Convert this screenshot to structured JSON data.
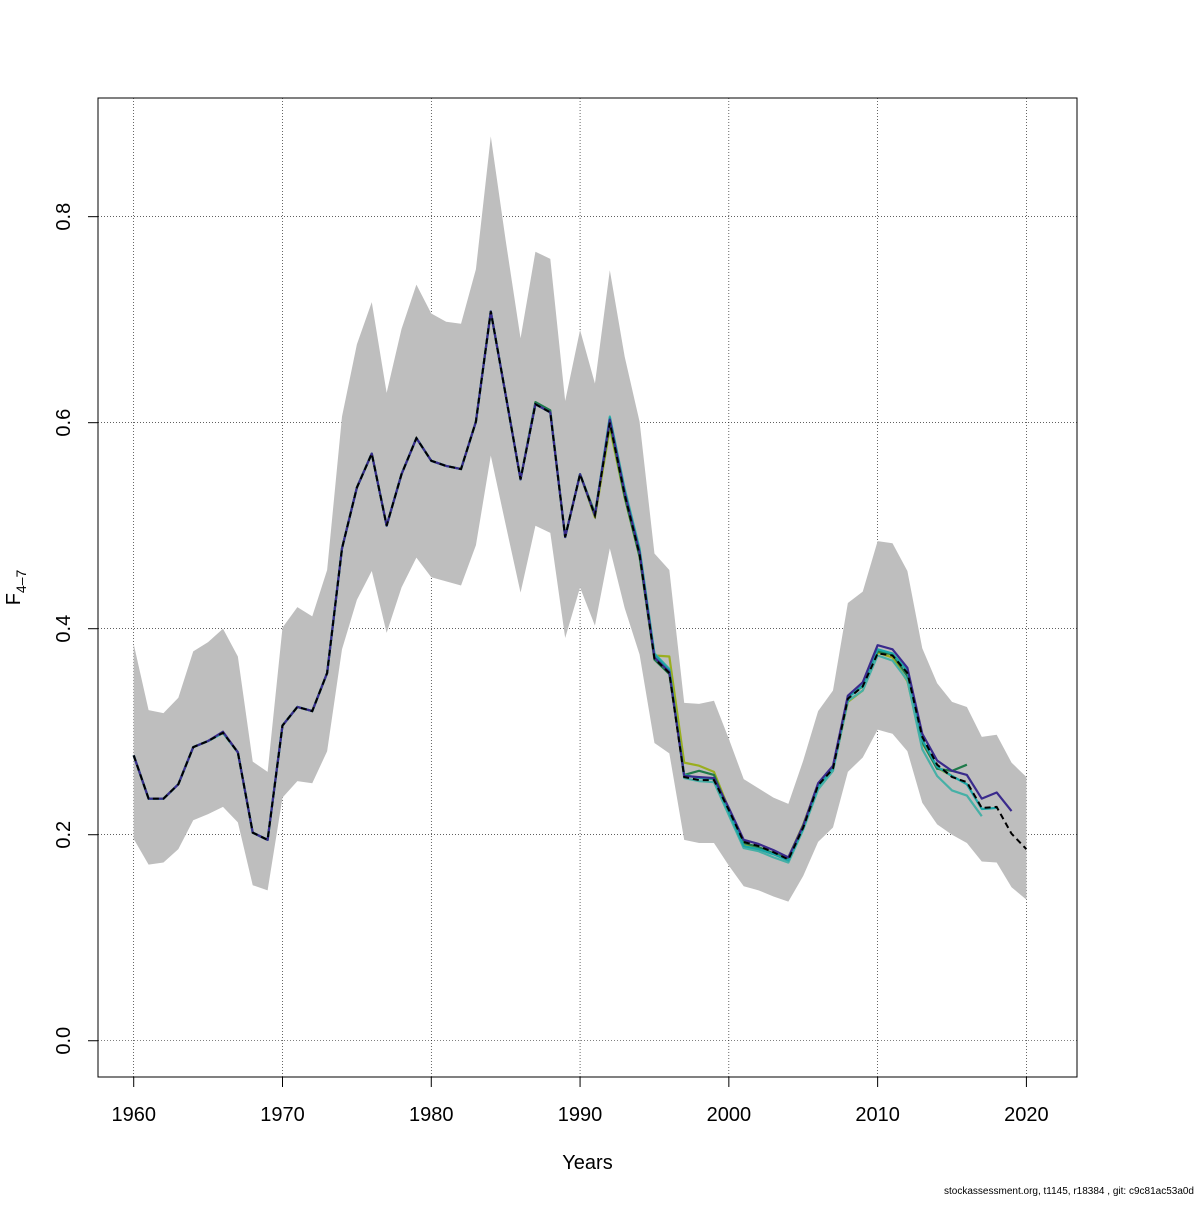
{
  "chart_data": {
    "type": "line",
    "xlabel": "Years",
    "ylabel": "F",
    "ylabel_subscript": "4–7",
    "xlim": [
      1957.6,
      2023.4
    ],
    "ylim": [
      -0.0352,
      0.9152
    ],
    "xticks": [
      1960,
      1970,
      1980,
      1990,
      2000,
      2010,
      2020
    ],
    "yticks": [
      0.0,
      0.2,
      0.4,
      0.6,
      0.8
    ],
    "ytick_labels": [
      "0.0",
      "0.2",
      "0.4",
      "0.6",
      "0.8"
    ],
    "grid": true,
    "colors": {
      "band": "#bebebe",
      "base": "#000000",
      "peels": [
        "#9aae1e",
        "#2e8b3a",
        "#1aa6a6",
        "#46b0a6",
        "#1f7a4a",
        "#3a2a8c"
      ]
    },
    "confidence_band": {
      "x": [
        1960,
        1961,
        1962,
        1963,
        1964,
        1965,
        1966,
        1967,
        1968,
        1969,
        1970,
        1971,
        1972,
        1973,
        1974,
        1975,
        1976,
        1977,
        1978,
        1979,
        1980,
        1981,
        1982,
        1983,
        1984,
        1985,
        1986,
        1987,
        1988,
        1989,
        1990,
        1991,
        1992,
        1993,
        1994,
        1995,
        1996,
        1997,
        1998,
        1999,
        2000,
        2001,
        2002,
        2003,
        2004,
        2005,
        2006,
        2007,
        2008,
        2009,
        2010,
        2011,
        2012,
        2013,
        2014,
        2015,
        2016,
        2017,
        2018,
        2019,
        2020
      ],
      "lower": [
        0.196,
        0.171,
        0.173,
        0.186,
        0.214,
        0.22,
        0.227,
        0.212,
        0.151,
        0.146,
        0.236,
        0.252,
        0.25,
        0.281,
        0.38,
        0.428,
        0.456,
        0.396,
        0.44,
        0.469,
        0.45,
        0.446,
        0.442,
        0.481,
        0.568,
        0.501,
        0.435,
        0.5,
        0.493,
        0.391,
        0.44,
        0.403,
        0.478,
        0.42,
        0.375,
        0.289,
        0.279,
        0.195,
        0.192,
        0.192,
        0.17,
        0.15,
        0.146,
        0.14,
        0.135,
        0.16,
        0.193,
        0.207,
        0.261,
        0.275,
        0.302,
        0.298,
        0.281,
        0.231,
        0.21,
        0.2,
        0.192,
        0.174,
        0.173,
        0.149,
        0.137
      ],
      "upper": [
        0.385,
        0.321,
        0.318,
        0.333,
        0.378,
        0.387,
        0.4,
        0.373,
        0.271,
        0.261,
        0.401,
        0.421,
        0.412,
        0.457,
        0.606,
        0.676,
        0.717,
        0.629,
        0.691,
        0.734,
        0.706,
        0.698,
        0.696,
        0.749,
        0.878,
        0.777,
        0.682,
        0.766,
        0.759,
        0.621,
        0.69,
        0.638,
        0.748,
        0.664,
        0.601,
        0.473,
        0.457,
        0.328,
        0.327,
        0.33,
        0.293,
        0.254,
        0.245,
        0.236,
        0.23,
        0.272,
        0.32,
        0.34,
        0.425,
        0.436,
        0.485,
        0.483,
        0.456,
        0.381,
        0.347,
        0.329,
        0.324,
        0.295,
        0.297,
        0.27,
        0.256
      ]
    },
    "series": [
      {
        "x": [
          1960,
          1961,
          1962,
          1963,
          1964,
          1965,
          1966,
          1967,
          1968,
          1969,
          1970,
          1971,
          1972,
          1973,
          1974,
          1975,
          1976,
          1977,
          1978,
          1979,
          1980,
          1981,
          1982,
          1983,
          1984,
          1985,
          1986,
          1987,
          1988,
          1989,
          1990,
          1991,
          1992,
          1993,
          1994,
          1995,
          1996,
          1997,
          1998,
          1999,
          2000,
          2001,
          2002,
          2003,
          2004,
          2005,
          2006,
          2007,
          2008,
          2009,
          2010,
          2011,
          2012,
          2013,
          2014,
          2015,
          2016,
          2017,
          2018,
          2019,
          2020
        ],
        "values": [
          0.277,
          0.235,
          0.235,
          0.249,
          0.285,
          0.291,
          0.299,
          0.28,
          0.202,
          0.195,
          0.306,
          0.324,
          0.32,
          0.357,
          0.478,
          0.537,
          0.57,
          0.5,
          0.55,
          0.585,
          0.563,
          0.558,
          0.555,
          0.601,
          0.708,
          0.627,
          0.545,
          0.618,
          0.61,
          0.489,
          0.55,
          0.51,
          0.6,
          0.53,
          0.472,
          0.371,
          0.357,
          0.256,
          0.253,
          0.253,
          0.224,
          0.193,
          0.189,
          0.183,
          0.176,
          0.207,
          0.248,
          0.264,
          0.332,
          0.344,
          0.376,
          0.374,
          0.357,
          0.295,
          0.268,
          0.256,
          0.251,
          0.226,
          0.227,
          0.201,
          0.186
        ]
      },
      {
        "x": [
          1960,
          1961,
          1962,
          1963,
          1964,
          1965,
          1966,
          1967,
          1968,
          1969,
          1970,
          1971,
          1972,
          1973,
          1974,
          1975,
          1976,
          1977,
          1978,
          1979,
          1980,
          1981,
          1982,
          1983,
          1984,
          1985,
          1986,
          1987,
          1988,
          1989,
          1990,
          1991,
          1992,
          1993,
          1994,
          1995,
          1996,
          1997,
          1998,
          1999,
          2000,
          2001,
          2002,
          2003,
          2004,
          2005,
          2006,
          2007,
          2008,
          2009,
          2010,
          2011,
          2012,
          2013,
          2014,
          2015,
          2016,
          2017,
          2018,
          2019
        ],
        "values": [
          0.277,
          0.235,
          0.235,
          0.249,
          0.285,
          0.291,
          0.3,
          0.28,
          0.202,
          0.195,
          0.306,
          0.324,
          0.32,
          0.357,
          0.478,
          0.537,
          0.57,
          0.5,
          0.55,
          0.585,
          0.563,
          0.558,
          0.555,
          0.601,
          0.708,
          0.627,
          0.545,
          0.618,
          0.61,
          0.489,
          0.55,
          0.51,
          0.603,
          0.532,
          0.474,
          0.372,
          0.358,
          0.257,
          0.256,
          0.255,
          0.226,
          0.195,
          0.191,
          0.185,
          0.178,
          0.209,
          0.25,
          0.267,
          0.335,
          0.348,
          0.384,
          0.38,
          0.362,
          0.298,
          0.272,
          0.262,
          0.258,
          0.235,
          0.241,
          0.223
        ]
      },
      {
        "x": [
          1960,
          1961,
          1962,
          1963,
          1964,
          1965,
          1966,
          1967,
          1968,
          1969,
          1970,
          1971,
          1972,
          1973,
          1974,
          1975,
          1976,
          1977,
          1978,
          1979,
          1980,
          1981,
          1982,
          1983,
          1984,
          1985,
          1986,
          1987,
          1988,
          1989,
          1990,
          1991,
          1992,
          1993,
          1994,
          1995,
          1996,
          1997,
          1998,
          1999,
          2000,
          2001,
          2002,
          2003,
          2004,
          2005,
          2006,
          2007,
          2008,
          2009,
          2010,
          2011,
          2012,
          2013,
          2014,
          2015,
          2016,
          2017,
          2018
        ],
        "values": [
          0.277,
          0.235,
          0.235,
          0.249,
          0.285,
          0.291,
          0.299,
          0.28,
          0.202,
          0.195,
          0.306,
          0.324,
          0.32,
          0.357,
          0.478,
          0.537,
          0.57,
          0.5,
          0.55,
          0.585,
          0.563,
          0.558,
          0.555,
          0.601,
          0.708,
          0.627,
          0.545,
          0.618,
          0.61,
          0.489,
          0.55,
          0.51,
          0.605,
          0.534,
          0.476,
          0.375,
          0.36,
          0.258,
          0.255,
          0.254,
          0.222,
          0.189,
          0.186,
          0.181,
          0.175,
          0.207,
          0.247,
          0.265,
          0.333,
          0.345,
          0.38,
          0.376,
          0.359,
          0.292,
          0.266,
          0.257,
          0.249,
          0.225,
          0.226
        ]
      },
      {
        "x": [
          1960,
          1961,
          1962,
          1963,
          1964,
          1965,
          1966,
          1967,
          1968,
          1969,
          1970,
          1971,
          1972,
          1973,
          1974,
          1975,
          1976,
          1977,
          1978,
          1979,
          1980,
          1981,
          1982,
          1983,
          1984,
          1985,
          1986,
          1987,
          1988,
          1989,
          1990,
          1991,
          1992,
          1993,
          1994,
          1995,
          1996,
          1997,
          1998,
          1999,
          2000,
          2001,
          2002,
          2003,
          2004,
          2005,
          2006,
          2007,
          2008,
          2009,
          2010,
          2011,
          2012,
          2013,
          2014,
          2015,
          2016,
          2017
        ],
        "values": [
          0.277,
          0.235,
          0.235,
          0.249,
          0.285,
          0.291,
          0.299,
          0.28,
          0.202,
          0.195,
          0.306,
          0.324,
          0.32,
          0.357,
          0.478,
          0.537,
          0.57,
          0.5,
          0.55,
          0.585,
          0.563,
          0.558,
          0.555,
          0.601,
          0.708,
          0.627,
          0.545,
          0.618,
          0.61,
          0.489,
          0.55,
          0.51,
          0.606,
          0.536,
          0.478,
          0.376,
          0.361,
          0.255,
          0.252,
          0.251,
          0.219,
          0.187,
          0.184,
          0.178,
          0.173,
          0.205,
          0.244,
          0.262,
          0.33,
          0.34,
          0.374,
          0.369,
          0.35,
          0.283,
          0.257,
          0.243,
          0.238,
          0.218
        ]
      },
      {
        "x": [
          1960,
          1961,
          1962,
          1963,
          1964,
          1965,
          1966,
          1967,
          1968,
          1969,
          1970,
          1971,
          1972,
          1973,
          1974,
          1975,
          1976,
          1977,
          1978,
          1979,
          1980,
          1981,
          1982,
          1983,
          1984,
          1985,
          1986,
          1987,
          1988,
          1989,
          1990,
          1991,
          1992,
          1993,
          1994,
          1995,
          1996,
          1997,
          1998,
          1999,
          2000,
          2001,
          2002,
          2003,
          2004,
          2005,
          2006,
          2007,
          2008,
          2009,
          2010,
          2011,
          2012,
          2013,
          2014,
          2015,
          2016
        ],
        "values": [
          0.277,
          0.235,
          0.235,
          0.249,
          0.285,
          0.291,
          0.299,
          0.28,
          0.202,
          0.195,
          0.306,
          0.324,
          0.32,
          0.357,
          0.478,
          0.537,
          0.57,
          0.5,
          0.55,
          0.585,
          0.563,
          0.558,
          0.555,
          0.601,
          0.708,
          0.627,
          0.545,
          0.62,
          0.612,
          0.489,
          0.55,
          0.512,
          0.6,
          0.528,
          0.47,
          0.37,
          0.356,
          0.258,
          0.262,
          0.258,
          0.223,
          0.192,
          0.188,
          0.182,
          0.176,
          0.209,
          0.248,
          0.265,
          0.334,
          0.344,
          0.378,
          0.375,
          0.354,
          0.29,
          0.264,
          0.262,
          0.268
        ]
      },
      {
        "x": [
          1960,
          1961,
          1962,
          1963,
          1964,
          1965,
          1966,
          1967,
          1968,
          1969,
          1970,
          1971,
          1972,
          1973,
          1974,
          1975,
          1976,
          1977,
          1978,
          1979,
          1980,
          1981,
          1982,
          1983,
          1984,
          1985,
          1986,
          1987,
          1988,
          1989,
          1990,
          1991,
          1992,
          1993,
          1994,
          1995,
          1996,
          1997,
          1998,
          1999,
          2000,
          2001,
          2002,
          2003,
          2004,
          2005,
          2006,
          2007,
          2008,
          2009,
          2010,
          2011,
          2012,
          2013,
          2014,
          2015
        ],
        "values": [
          0.277,
          0.235,
          0.235,
          0.249,
          0.285,
          0.291,
          0.299,
          0.28,
          0.202,
          0.195,
          0.306,
          0.324,
          0.32,
          0.357,
          0.478,
          0.537,
          0.57,
          0.5,
          0.55,
          0.585,
          0.563,
          0.558,
          0.555,
          0.601,
          0.708,
          0.627,
          0.545,
          0.618,
          0.61,
          0.489,
          0.55,
          0.508,
          0.595,
          0.527,
          0.47,
          0.374,
          0.373,
          0.27,
          0.267,
          0.261,
          0.225,
          0.19,
          0.186,
          0.182,
          0.178,
          0.21,
          0.249,
          0.263,
          0.329,
          0.34,
          0.377,
          0.372,
          0.349,
          0.289,
          0.265,
          0.257
        ]
      }
    ]
  },
  "footer": {
    "text": "stockassessment.org, t1145, r18384 , git: c9c81ac53a0d"
  }
}
